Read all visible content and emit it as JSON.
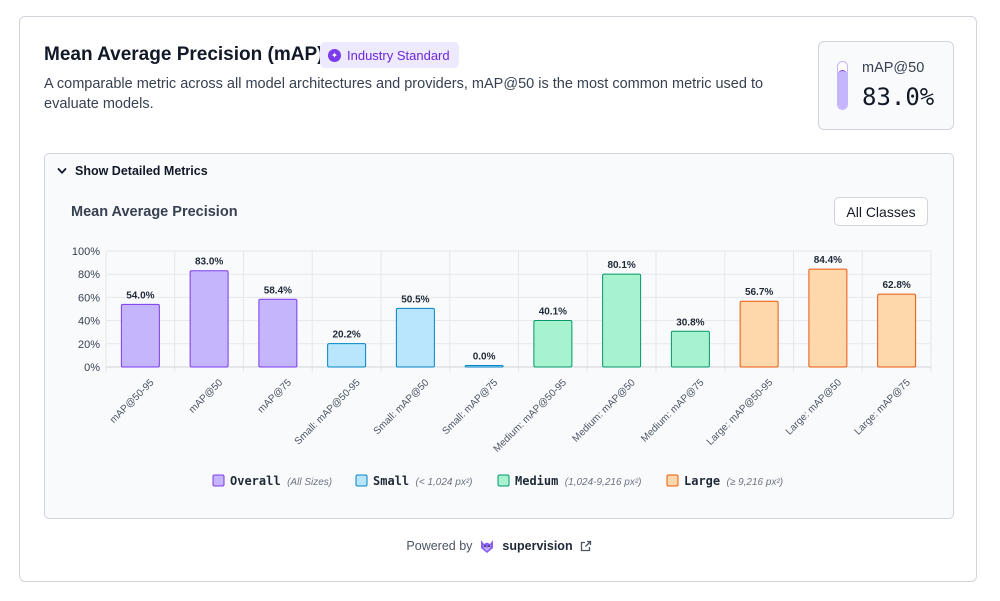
{
  "header": {
    "title": "Mean Average Precision (mAP)",
    "badge": "Industry Standard",
    "description": "A comparable metric across all model architectures and providers, mAP@50 is the most common metric used to evaluate models."
  },
  "kpi": {
    "label": "mAP@50",
    "value": "83.0%",
    "fill_fraction": 0.83
  },
  "details": {
    "toggle_label": "Show Detailed Metrics",
    "chart_title": "Mean Average Precision",
    "filter_label": "All Classes"
  },
  "chart_data": {
    "type": "bar",
    "title": "Mean Average Precision",
    "categories": [
      "mAP@50-95",
      "mAP@50",
      "mAP@75",
      "Small: mAP@50-95",
      "Small: mAP@50",
      "Small: mAP@75",
      "Medium: mAP@50-95",
      "Medium: mAP@50",
      "Medium: mAP@75",
      "Large: mAP@50-95",
      "Large: mAP@50",
      "Large: mAP@75"
    ],
    "values": [
      54.0,
      83.0,
      58.4,
      20.2,
      50.5,
      0.0,
      40.1,
      80.1,
      30.8,
      56.7,
      84.4,
      62.8
    ],
    "value_labels": [
      "54.0%",
      "83.0%",
      "58.4%",
      "20.2%",
      "50.5%",
      "0.0%",
      "40.1%",
      "80.1%",
      "30.8%",
      "56.7%",
      "84.4%",
      "62.8%"
    ],
    "groups": [
      "overall",
      "overall",
      "overall",
      "small",
      "small",
      "small",
      "medium",
      "medium",
      "medium",
      "large",
      "large",
      "large"
    ],
    "ylim": [
      0,
      100
    ],
    "yticks": [
      "0%",
      "20%",
      "40%",
      "60%",
      "80%",
      "100%"
    ],
    "grid": true,
    "legend": [
      {
        "key": "overall",
        "name": "Overall",
        "note": "(All Sizes)",
        "fill": "#c4b5fd",
        "stroke": "#7c3aed"
      },
      {
        "key": "small",
        "name": "Small",
        "note": "(< 1,024 px²)",
        "fill": "#bae6fd",
        "stroke": "#0284c7"
      },
      {
        "key": "medium",
        "name": "Medium",
        "note": "(1,024-9,216 px²)",
        "fill": "#a7f3d0",
        "stroke": "#059669"
      },
      {
        "key": "large",
        "name": "Large",
        "note": "(≥ 9,216 px²)",
        "fill": "#fed7aa",
        "stroke": "#ea580c"
      }
    ]
  },
  "footer": {
    "prefix": "Powered by",
    "brand": "supervision"
  }
}
